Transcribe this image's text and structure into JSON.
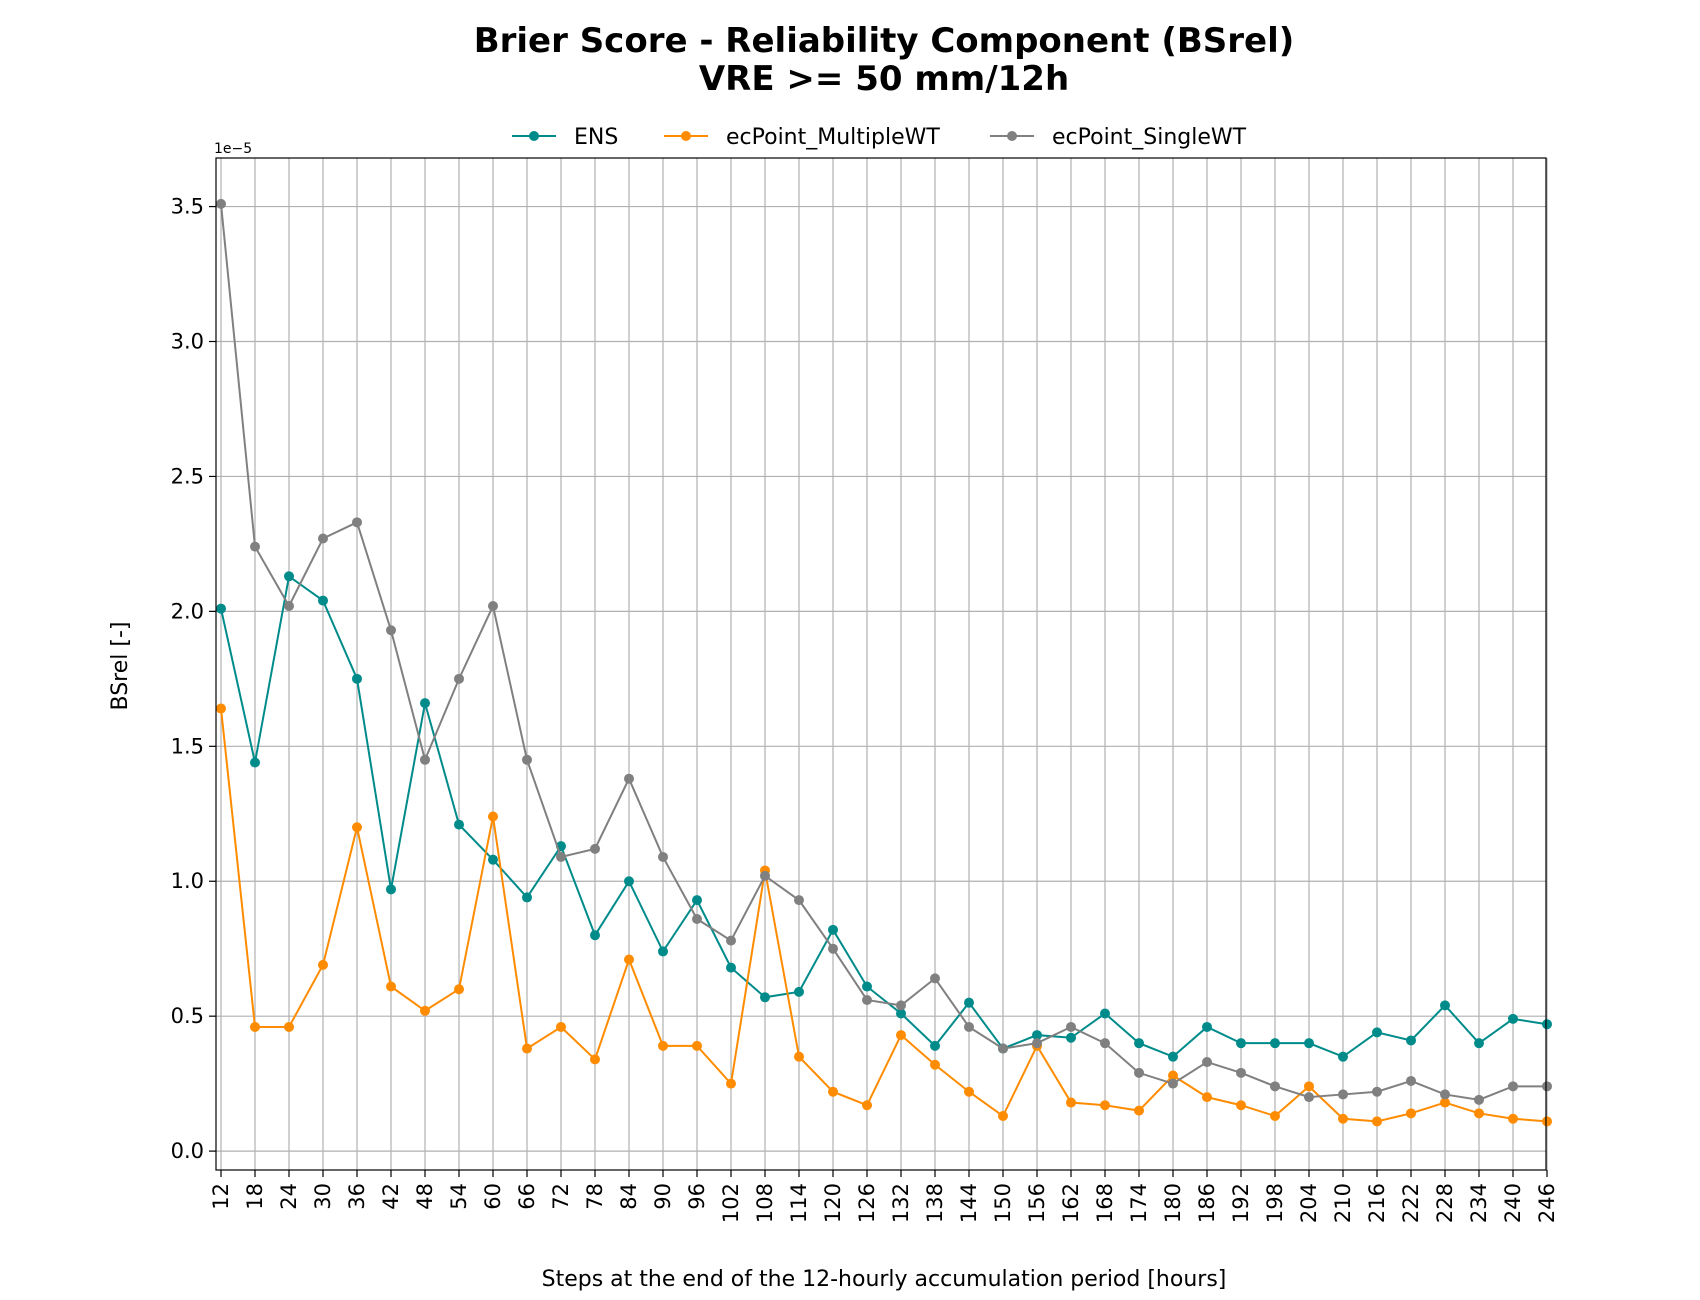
{
  "chart_data": {
    "type": "line",
    "title": "Brier Score - Reliability Component (BSrel)",
    "subtitle": "VRE >= 50 mm/12h",
    "xlabel": "Steps at the end of the 12-hourly accumulation period [hours]",
    "ylabel": "BSrel [-]",
    "y_scale_label": "1e−5",
    "ylim": [
      -0.07,
      3.68
    ],
    "grid": true,
    "legend_position": "top-center",
    "x": [
      12,
      18,
      24,
      30,
      36,
      42,
      48,
      54,
      60,
      66,
      72,
      78,
      84,
      90,
      96,
      102,
      108,
      114,
      120,
      126,
      132,
      138,
      144,
      150,
      156,
      162,
      168,
      174,
      180,
      186,
      192,
      198,
      204,
      210,
      216,
      222,
      228,
      234,
      240,
      246
    ],
    "x_tick_labels": [
      "12",
      "18",
      "24",
      "30",
      "36",
      "42",
      "48",
      "54",
      "60",
      "66",
      "72",
      "78",
      "84",
      "90",
      "96",
      "102",
      "108",
      "114",
      "120",
      "126",
      "132",
      "138",
      "144",
      "150",
      "156",
      "162",
      "168",
      "174",
      "180",
      "186",
      "192",
      "198",
      "204",
      "210",
      "216",
      "222",
      "228",
      "234",
      "240",
      "246"
    ],
    "y_ticks": [
      0.0,
      0.5,
      1.0,
      1.5,
      2.0,
      2.5,
      3.0,
      3.5
    ],
    "y_tick_labels": [
      "0.0",
      "0.5",
      "1.0",
      "1.5",
      "2.0",
      "2.5",
      "3.0",
      "3.5"
    ],
    "series": [
      {
        "name": "ENS",
        "color": "#008b8b",
        "values": [
          2.01,
          1.44,
          2.13,
          2.04,
          1.75,
          0.97,
          1.66,
          1.21,
          1.08,
          0.94,
          1.13,
          0.8,
          1.0,
          0.74,
          0.93,
          0.68,
          0.57,
          0.59,
          0.82,
          0.61,
          0.51,
          0.39,
          0.55,
          0.38,
          0.43,
          0.42,
          0.51,
          0.4,
          0.35,
          0.46,
          0.4,
          0.4,
          0.4,
          0.35,
          0.44,
          0.41,
          0.54,
          0.4,
          0.49,
          0.47
        ]
      },
      {
        "name": "ecPoint_MultipleWT",
        "color": "#ff8c00",
        "values": [
          1.64,
          0.46,
          0.46,
          0.69,
          1.2,
          0.61,
          0.52,
          0.6,
          1.24,
          0.38,
          0.46,
          0.34,
          0.71,
          0.39,
          0.39,
          0.25,
          1.04,
          0.35,
          0.22,
          0.17,
          0.43,
          0.32,
          0.22,
          0.13,
          0.39,
          0.18,
          0.17,
          0.15,
          0.28,
          0.2,
          0.17,
          0.13,
          0.24,
          0.12,
          0.11,
          0.14,
          0.18,
          0.14,
          0.12,
          0.11
        ]
      },
      {
        "name": "ecPoint_SingleWT",
        "color": "#808080",
        "values": [
          3.51,
          2.24,
          2.02,
          2.27,
          2.33,
          1.93,
          1.45,
          1.75,
          2.02,
          1.45,
          1.09,
          1.12,
          1.38,
          1.09,
          0.86,
          0.78,
          1.02,
          0.93,
          0.75,
          0.56,
          0.54,
          0.64,
          0.46,
          0.38,
          0.4,
          0.46,
          0.4,
          0.29,
          0.25,
          0.33,
          0.29,
          0.24,
          0.2,
          0.21,
          0.22,
          0.26,
          0.21,
          0.19,
          0.24,
          0.24
        ]
      }
    ]
  }
}
